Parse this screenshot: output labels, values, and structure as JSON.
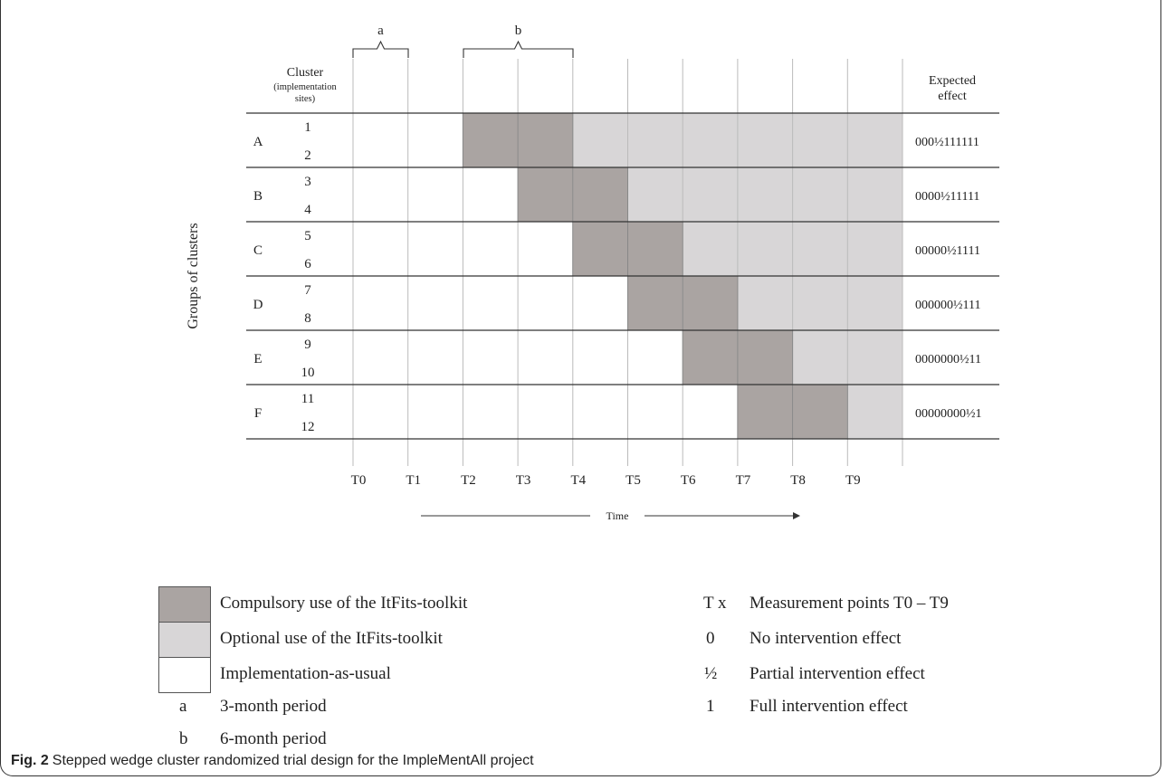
{
  "colors": {
    "compulsory": "#aaa4a2",
    "optional": "#d8d6d7",
    "usual": "#ffffff",
    "line": "#333333",
    "grid": "#bbbbbb"
  },
  "header": {
    "cluster_label": "Cluster",
    "cluster_sub": "(implementation",
    "cluster_sub2": "sites)",
    "effect_label": "Expected",
    "effect_label2": "effect",
    "y_axis_label": "Groups of clusters",
    "bracket_a": "a",
    "bracket_b": "b"
  },
  "chart_data": {
    "type": "table",
    "time_points": [
      "T0",
      "T1",
      "T2",
      "T3",
      "T4",
      "T5",
      "T6",
      "T7",
      "T8",
      "T9"
    ],
    "time_label": "Time",
    "groups": [
      {
        "name": "A",
        "clusters": [
          "1",
          "2"
        ],
        "compulsory_start": 2,
        "effect": "000½111111"
      },
      {
        "name": "B",
        "clusters": [
          "3",
          "4"
        ],
        "compulsory_start": 3,
        "effect": "0000½11111"
      },
      {
        "name": "C",
        "clusters": [
          "5",
          "6"
        ],
        "compulsory_start": 4,
        "effect": "00000½1111"
      },
      {
        "name": "D",
        "clusters": [
          "7",
          "8"
        ],
        "compulsory_start": 5,
        "effect": "000000½111"
      },
      {
        "name": "E",
        "clusters": [
          "9",
          "10"
        ],
        "compulsory_start": 6,
        "effect": "0000000½11"
      },
      {
        "name": "F",
        "clusters": [
          "11",
          "12"
        ],
        "compulsory_start": 7,
        "effect": "00000000½1"
      }
    ]
  },
  "legend": {
    "compulsory": "Compulsory use of the ItFits-toolkit",
    "optional": "Optional use of the ItFits-toolkit",
    "usual": "Implementation-as-usual",
    "a_key": "a",
    "a_text": "3-month period",
    "b_key": "b",
    "b_text": "6-month period",
    "tx_key": "T x",
    "tx_text": "Measurement points T0 – T9",
    "zero_key": "0",
    "zero_text": "No intervention effect",
    "half_key": "½",
    "half_text": "Partial intervention effect",
    "one_key": "1",
    "one_text": "Full intervention effect"
  },
  "caption": {
    "label": "Fig. 2",
    "text": "Stepped wedge cluster randomized trial design for the ImpleMentAll project"
  }
}
